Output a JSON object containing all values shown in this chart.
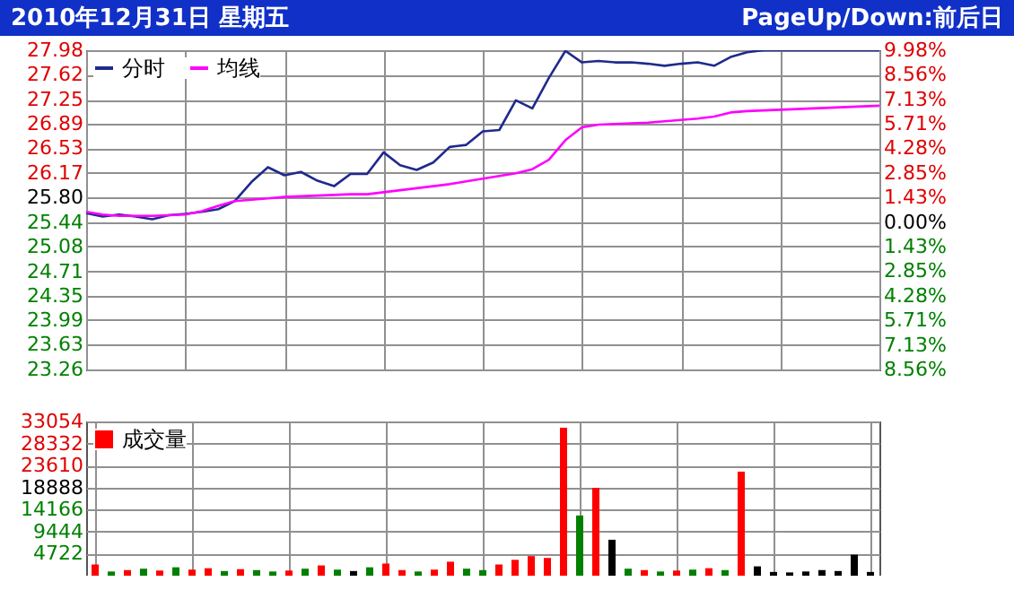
{
  "chart_data": [
    {
      "type": "line",
      "title": "2010年12月31日 星期五",
      "subtitle": "PageUp/Down:前后日",
      "categories": [
        null,
        null,
        null,
        null,
        null,
        null,
        null,
        null,
        null,
        null,
        null,
        null,
        null,
        null,
        null,
        null,
        null,
        null,
        null,
        null,
        null,
        null,
        null,
        null,
        null,
        null,
        null,
        null,
        null,
        null,
        null,
        null,
        null,
        null,
        null,
        null,
        null,
        null,
        null,
        null,
        null,
        null,
        null,
        null,
        null,
        null,
        null,
        null,
        null
      ],
      "series": [
        {
          "name": "分时",
          "color": "#1f2a8c",
          "values": [
            25.57,
            25.52,
            25.55,
            25.52,
            25.48,
            25.54,
            25.56,
            25.59,
            25.63,
            25.75,
            26.03,
            26.25,
            26.13,
            26.18,
            26.05,
            25.97,
            26.15,
            26.15,
            26.47,
            26.28,
            26.21,
            26.32,
            26.55,
            26.58,
            26.78,
            26.8,
            27.24,
            27.12,
            27.57,
            27.97,
            27.8,
            27.82,
            27.8,
            27.8,
            27.78,
            27.75,
            27.78,
            27.8,
            27.75,
            27.88,
            27.95,
            27.98,
            27.98,
            27.98,
            27.98,
            27.98,
            27.98,
            27.98,
            27.98
          ]
        },
        {
          "name": "均线",
          "color": "#ff00ff",
          "values": [
            25.59,
            25.55,
            25.53,
            25.53,
            25.53,
            25.54,
            25.55,
            25.6,
            25.68,
            25.75,
            25.77,
            25.79,
            25.81,
            25.82,
            25.83,
            25.84,
            25.85,
            25.85,
            25.88,
            25.91,
            25.94,
            25.97,
            26.0,
            26.04,
            26.08,
            26.12,
            26.16,
            26.22,
            26.36,
            26.65,
            26.84,
            26.88,
            26.89,
            26.9,
            26.91,
            26.93,
            26.95,
            26.97,
            27.0,
            27.06,
            27.08,
            27.09,
            27.1,
            27.11,
            27.12,
            27.13,
            27.14,
            27.15,
            27.16
          ]
        }
      ],
      "ylim": [
        23.26,
        27.98
      ],
      "yticks": [
        23.26,
        23.63,
        23.99,
        24.35,
        24.71,
        25.08,
        25.44,
        {
          "value": 25.8,
          "label": "25.80"
        },
        26.17,
        26.53,
        26.89,
        27.25,
        27.62,
        27.98
      ],
      "y2lim": [
        -8.56,
        9.98
      ],
      "y2ticks": [
        {
          "value": -8.56,
          "label": "8.56%"
        },
        {
          "value": -7.13,
          "label": "7.13%"
        },
        {
          "value": -5.71,
          "label": "5.71%"
        },
        {
          "value": -4.28,
          "label": "4.28%"
        },
        {
          "value": -2.85,
          "label": "2.85%"
        },
        {
          "value": -1.43,
          "label": "1.43%"
        },
        {
          "value": 0,
          "label": "0.00%"
        },
        {
          "value": 1.43,
          "label": "1.43%"
        },
        {
          "value": 2.85,
          "label": "2.85%"
        },
        {
          "value": 4.28,
          "label": "4.28%"
        },
        {
          "value": 5.71,
          "label": "5.71%"
        },
        {
          "value": 7.13,
          "label": "7.13%"
        },
        {
          "value": 8.56,
          "label": "8.56%"
        },
        {
          "value": 9.98,
          "label": "9.98%"
        }
      ],
      "grid": true,
      "legend": "top left",
      "tick_labels": "y"
    },
    {
      "type": "bar",
      "categories": [
        null,
        null,
        null,
        null,
        null,
        null,
        null,
        null,
        null,
        null,
        null,
        null,
        null,
        null,
        null,
        null,
        null,
        null,
        null,
        null,
        null,
        null,
        null,
        null,
        null,
        null,
        null,
        null,
        null,
        null,
        null,
        null,
        null,
        null,
        null,
        null,
        null,
        null,
        null,
        null,
        null,
        null,
        null,
        null,
        null,
        null,
        null,
        null,
        null
      ],
      "series": [
        {
          "name": "成交量",
          "color": "#ff0000",
          "values": [
            2400,
            900,
            1200,
            1500,
            1100,
            1800,
            1300,
            1600,
            1000,
            1400,
            1200,
            900,
            1100,
            1500,
            2200,
            1300,
            1000,
            1800,
            2600,
            1200,
            900,
            1300,
            3000,
            1500,
            1200,
            2400,
            3400,
            4200,
            3800,
            31700,
            12900,
            18800,
            7700,
            1500,
            1200,
            900,
            1100,
            1300,
            1600,
            1200,
            22300,
            2000,
            800,
            700,
            900,
            1200,
            1000,
            4500,
            800
          ],
          "colors": [
            "#ff0000",
            "#008000",
            "#ff0000",
            "#008000",
            "#ff0000",
            "#008000",
            "#ff0000",
            "#ff0000",
            "#008000",
            "#ff0000",
            "#008000",
            "#008000",
            "#ff0000",
            "#008000",
            "#ff0000",
            "#008000",
            "#000000",
            "#008000",
            "#ff0000",
            "#ff0000",
            "#008000",
            "#ff0000",
            "#ff0000",
            "#008000",
            "#008000",
            "#ff0000",
            "#ff0000",
            "#ff0000",
            "#ff0000",
            "#ff0000",
            "#008000",
            "#ff0000",
            "#000000",
            "#008000",
            "#ff0000",
            "#008000",
            "#ff0000",
            "#008000",
            "#ff0000",
            "#008000",
            "#ff0000",
            "#000000",
            "#000000",
            "#000000",
            "#000000",
            "#000000",
            "#000000",
            "#000000",
            "#000000"
          ]
        }
      ],
      "ylim": [
        0,
        33054
      ],
      "yticks": [
        4722,
        9444,
        14166,
        18888,
        23610,
        28332,
        33054
      ],
      "grid": true,
      "legend": "top left",
      "tick_labels": "y"
    }
  ]
}
